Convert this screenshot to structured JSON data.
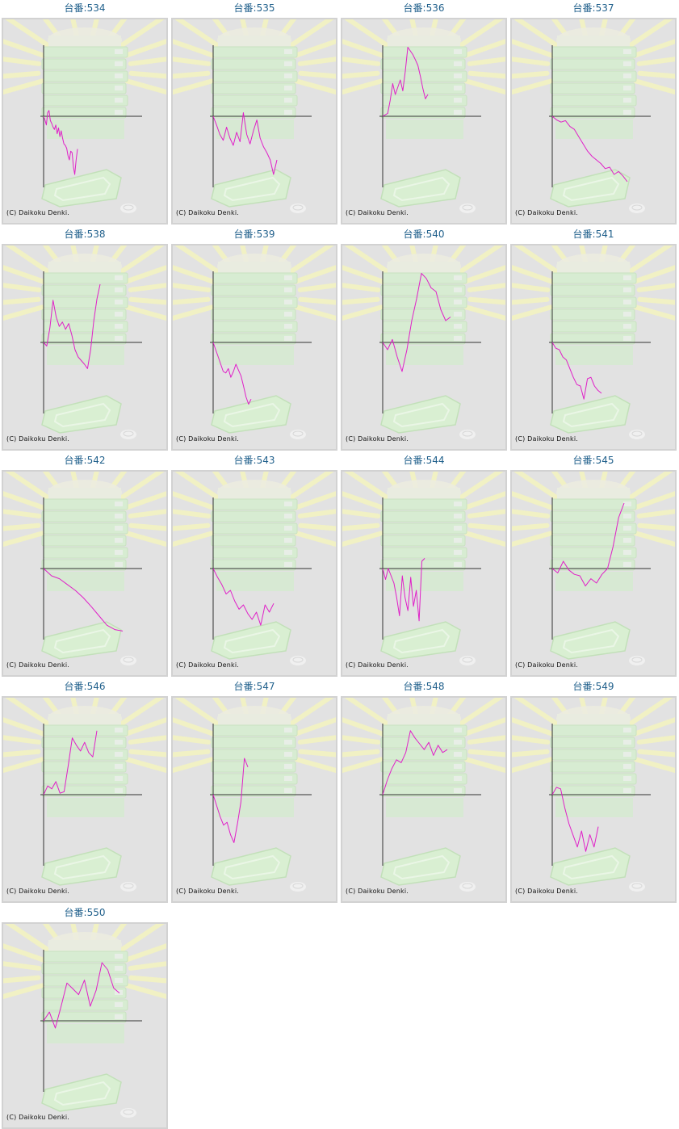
{
  "machine_prefix": "台番",
  "copyright": "(C) Daikoku Denki.",
  "line_color": "#e020c8",
  "machines": [
    {
      "number": "534",
      "chart_data": {
        "type": "line",
        "values": [
          0,
          -5,
          -12,
          5,
          8,
          -6,
          -10,
          -15,
          -18,
          -12,
          -24,
          -16,
          -28,
          -20,
          -30,
          -38,
          -40,
          -44,
          -54,
          -60,
          -48,
          -50,
          -70,
          -80,
          -60,
          -45
        ]
      }
    },
    {
      "number": "535",
      "chart_data": {
        "type": "line",
        "values": [
          0,
          -12,
          -25,
          -33,
          -15,
          -30,
          -40,
          -22,
          -35,
          5,
          -25,
          -38,
          -20,
          -5,
          -30,
          -42,
          -50,
          -60,
          -80,
          -60
        ]
      }
    },
    {
      "number": "536",
      "chart_data": {
        "type": "line",
        "values": [
          0,
          2,
          4,
          22,
          45,
          30,
          40,
          50,
          35,
          62,
          95,
          90,
          85,
          78,
          70,
          55,
          38,
          24,
          30
        ]
      }
    },
    {
      "number": "537",
      "chart_data": {
        "type": "line",
        "values": [
          0,
          -5,
          -8,
          -6,
          -14,
          -18,
          -28,
          -38,
          -48,
          -55,
          -60,
          -65,
          -72,
          -70,
          -80,
          -76,
          -82,
          -90
        ]
      }
    },
    {
      "number": "538",
      "chart_data": {
        "type": "line",
        "values": [
          0,
          -5,
          20,
          58,
          35,
          22,
          28,
          18,
          26,
          10,
          -10,
          -20,
          -25,
          -30,
          -36,
          -10,
          30,
          60,
          80
        ]
      }
    },
    {
      "number": "539",
      "chart_data": {
        "type": "line",
        "values": [
          0,
          -10,
          -20,
          -30,
          -40,
          -42,
          -36,
          -48,
          -40,
          -30,
          -38,
          -46,
          -60,
          -75,
          -85,
          -78
        ]
      }
    },
    {
      "number": "540",
      "chart_data": {
        "type": "line",
        "values": [
          0,
          -10,
          4,
          -20,
          -40,
          -10,
          30,
          60,
          95,
          88,
          75,
          70,
          45,
          30,
          35
        ]
      }
    },
    {
      "number": "541",
      "chart_data": {
        "type": "line",
        "values": [
          0,
          -8,
          -10,
          -20,
          -24,
          -36,
          -48,
          -58,
          -60,
          -78,
          -50,
          -48,
          -60,
          -66,
          -70
        ]
      }
    },
    {
      "number": "542",
      "chart_data": {
        "type": "line",
        "values": [
          0,
          -10,
          -14,
          -22,
          -30,
          -40,
          -52,
          -65,
          -78,
          -84,
          -86
        ]
      }
    },
    {
      "number": "543",
      "chart_data": {
        "type": "line",
        "values": [
          0,
          -12,
          -22,
          -35,
          -30,
          -45,
          -56,
          -50,
          -62,
          -70,
          -60,
          -78,
          -50,
          -60,
          -48
        ]
      }
    },
    {
      "number": "544",
      "chart_data": {
        "type": "line",
        "values": [
          0,
          -15,
          0,
          -10,
          -20,
          -40,
          -65,
          -10,
          -40,
          -58,
          -12,
          -52,
          -30,
          -72,
          10,
          14
        ]
      }
    },
    {
      "number": "545",
      "chart_data": {
        "type": "line",
        "values": [
          0,
          -6,
          10,
          -2,
          -8,
          -10,
          -24,
          -14,
          -20,
          -8,
          0,
          30,
          70,
          90
        ]
      }
    },
    {
      "number": "546",
      "chart_data": {
        "type": "line",
        "values": [
          0,
          12,
          8,
          18,
          2,
          4,
          40,
          78,
          68,
          60,
          72,
          58,
          52,
          88
        ]
      }
    },
    {
      "number": "547",
      "chart_data": {
        "type": "line",
        "values": [
          0,
          -15,
          -30,
          -42,
          -38,
          -55,
          -66,
          -40,
          -10,
          50,
          38
        ]
      }
    },
    {
      "number": "548",
      "chart_data": {
        "type": "line",
        "values": [
          0,
          20,
          36,
          48,
          44,
          58,
          88,
          78,
          70,
          62,
          72,
          54,
          68,
          58,
          62
        ]
      }
    },
    {
      "number": "549",
      "chart_data": {
        "type": "line",
        "values": [
          0,
          10,
          8,
          -18,
          -40,
          -56,
          -72,
          -50,
          -78,
          -55,
          -72,
          -44
        ]
      }
    },
    {
      "number": "550",
      "chart_data": {
        "type": "line",
        "values": [
          0,
          12,
          -10,
          20,
          52,
          44,
          36,
          56,
          20,
          42,
          80,
          70,
          45,
          38
        ]
      }
    }
  ]
}
